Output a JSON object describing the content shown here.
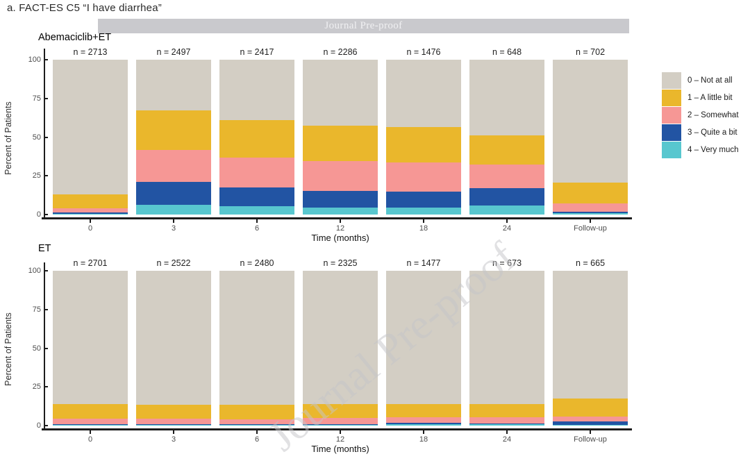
{
  "figure": {
    "title": "a. FACT-ES C5 “I have diarrhea”"
  },
  "banner": {
    "text": "Journal Pre-proof",
    "bg_color": "#c9c9cd",
    "text_color": "#f0f0f2"
  },
  "watermark": {
    "text": "Journal Pre-proof"
  },
  "axes": {
    "ylabel": "Percent of Patients",
    "xlabel": "Time (months)",
    "yticks": [
      100,
      75,
      50,
      25,
      0
    ]
  },
  "legend": {
    "items": [
      {
        "label": "0 – Not at all",
        "color": "#d3cec4"
      },
      {
        "label": "1 – A little bit",
        "color": "#eab72c"
      },
      {
        "label": "2 – Somewhat",
        "color": "#f69795"
      },
      {
        "label": "3 – Quite a bit",
        "color": "#2254a3"
      },
      {
        "label": "4 – Very much",
        "color": "#58c7cf"
      }
    ]
  },
  "chart_data": [
    {
      "type": "bar",
      "stacked": true,
      "panel": "Abemaciclib+ET",
      "categories": [
        "0",
        "3",
        "6",
        "12",
        "18",
        "24",
        "Follow-up"
      ],
      "n_labels": [
        "n = 2713",
        "n = 2497",
        "n = 2417",
        "n = 2286",
        "n = 1476",
        "n = 648",
        "n = 702"
      ],
      "ylim": [
        0,
        100
      ],
      "series": [
        {
          "name": "4 - Very much",
          "color": "#58c7cf",
          "values": [
            0.4,
            6.5,
            5.2,
            4.3,
            4.5,
            6.0,
            0.9
          ]
        },
        {
          "name": "3 - Quite a bit",
          "color": "#2254a3",
          "values": [
            0.9,
            14.7,
            12.3,
            10.9,
            10.1,
            11.2,
            0.9
          ]
        },
        {
          "name": "2 - Somewhat",
          "color": "#f69795",
          "values": [
            2.7,
            20.4,
            19.5,
            19.3,
            19.0,
            15.3,
            5.2
          ]
        },
        {
          "name": "1 - A little bit",
          "color": "#eab72c",
          "values": [
            9.0,
            25.6,
            24.0,
            23.0,
            23.0,
            18.5,
            13.8
          ]
        },
        {
          "name": "0 - Not at all",
          "color": "#d3cec4",
          "values": [
            87.0,
            32.8,
            39.0,
            42.5,
            43.4,
            49.0,
            79.2
          ]
        }
      ]
    },
    {
      "type": "bar",
      "stacked": true,
      "panel": "ET",
      "categories": [
        "0",
        "3",
        "6",
        "12",
        "18",
        "24",
        "Follow-up"
      ],
      "n_labels": [
        "n = 2701",
        "n = 2522",
        "n = 2480",
        "n = 2325",
        "n = 1477",
        "n = 673",
        "n = 665"
      ],
      "ylim": [
        0,
        100
      ],
      "series": [
        {
          "name": "4 - Very much",
          "color": "#58c7cf",
          "values": [
            0.3,
            0.3,
            0.3,
            0.3,
            0.8,
            1.0,
            0.4
          ]
        },
        {
          "name": "3 - Quite a bit",
          "color": "#2254a3",
          "values": [
            0.8,
            0.7,
            0.7,
            0.7,
            1.0,
            0.5,
            2.4
          ]
        },
        {
          "name": "2 - Somewhat",
          "color": "#f69795",
          "values": [
            3.4,
            3.5,
            3.2,
            3.8,
            3.5,
            4.0,
            3.2
          ]
        },
        {
          "name": "1 - A little bit",
          "color": "#eab72c",
          "values": [
            9.5,
            9.0,
            9.3,
            9.0,
            8.7,
            8.2,
            11.5
          ]
        },
        {
          "name": "0 - Not at all",
          "color": "#d3cec4",
          "values": [
            86.0,
            86.5,
            86.5,
            86.2,
            86.0,
            86.3,
            82.5
          ]
        }
      ]
    }
  ]
}
